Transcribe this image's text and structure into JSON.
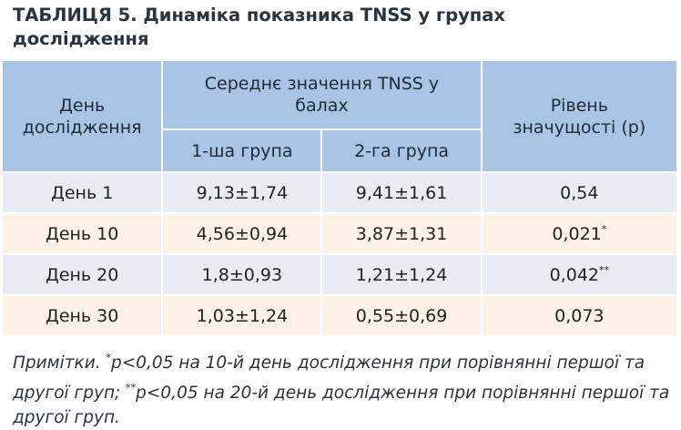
{
  "title": "ТАБЛИЦЯ 5. Динаміка показника TNSS у групах дослідження",
  "table": {
    "header": {
      "day": "День дослідження",
      "mean": "Середнє значення TNSS у балах",
      "group1": "1-ша група",
      "group2": "2-га група",
      "p": "Рівень значущості (p)"
    },
    "rows": [
      {
        "day": "День 1",
        "group1": "9,13±1,74",
        "group2": "9,41±1,61",
        "p": "0,54"
      },
      {
        "day": "День 10",
        "group1": "4,56±0,94",
        "group2": "3,87±1,31",
        "p": "0,021",
        "mark": "*"
      },
      {
        "day": "День 20",
        "group1": "1,8±0,93",
        "group2": "1,21±1,24",
        "p": "0,042",
        "mark": "**"
      },
      {
        "day": "День 30",
        "group1": "1,03±1,24",
        "group2": "0,55±0,69",
        "p": "0,073"
      }
    ]
  },
  "note": [
    "Примітки.",
    "*",
    "p<0,05 на 10-й день дослідження при порівнянні першої та другої груп;",
    "**",
    "p<0,05 на 20-й день дослідження при порівнянні першої та другої груп."
  ]
}
